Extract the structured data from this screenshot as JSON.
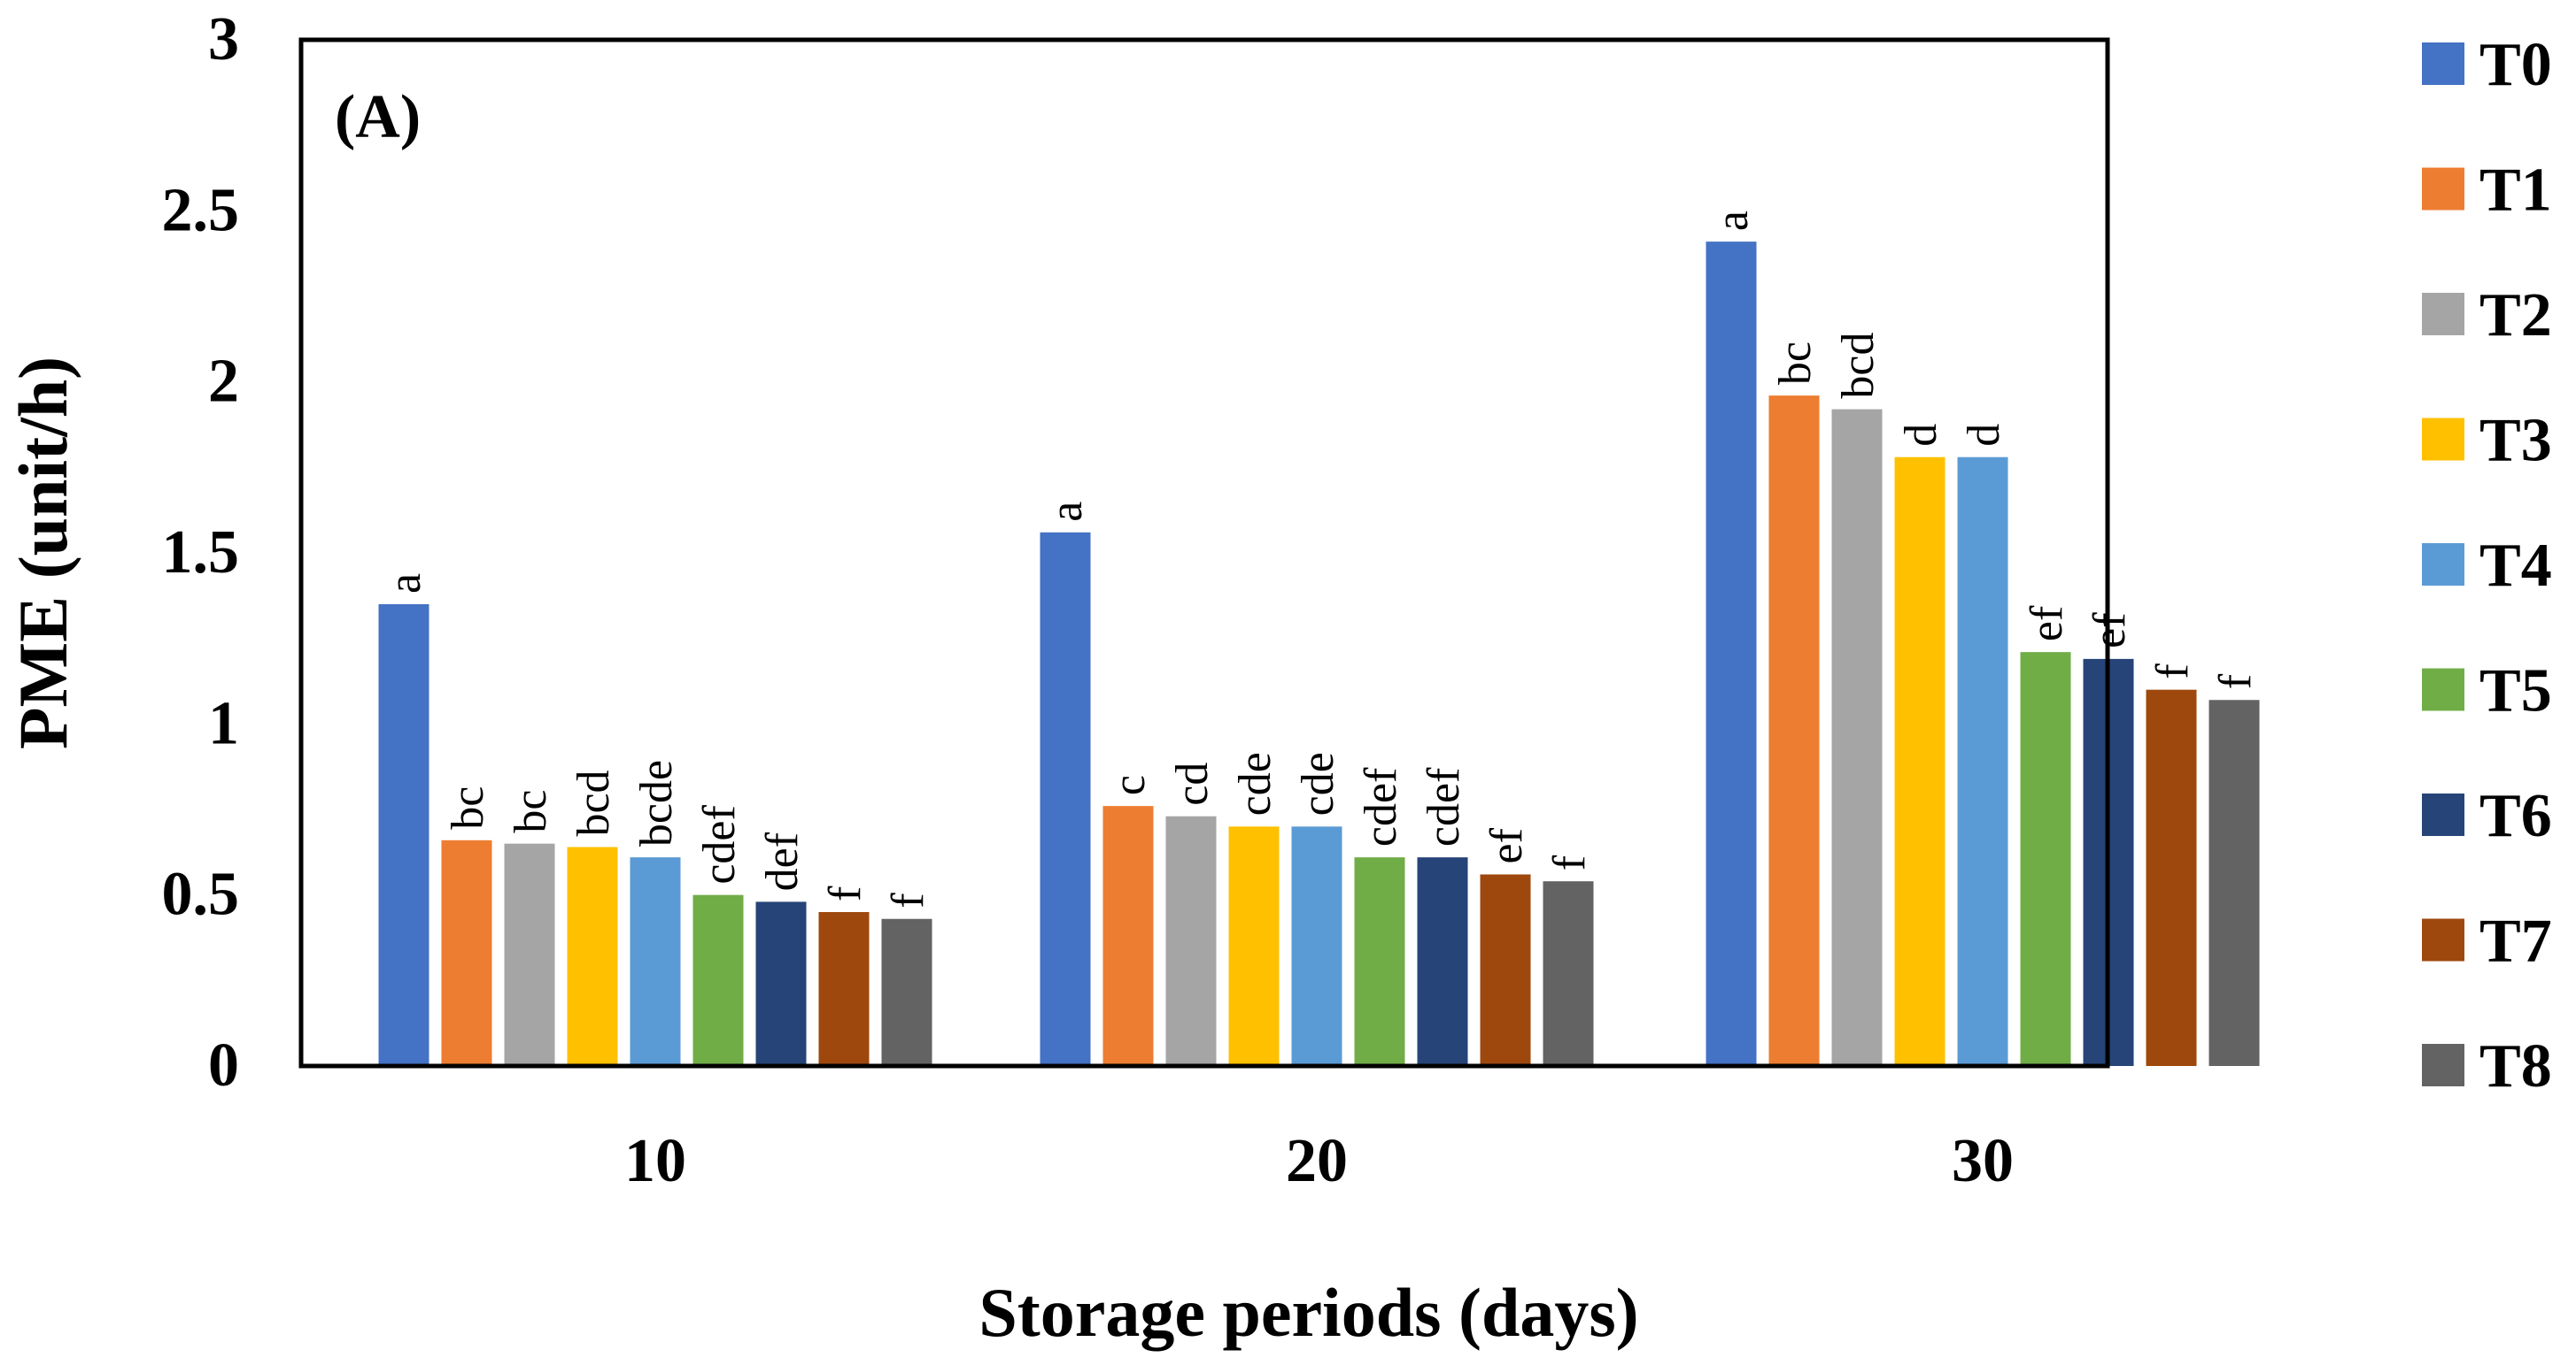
{
  "chart_data": {
    "type": "bar",
    "panel_label": "(A)",
    "xlabel": "Storage periods (days)",
    "ylabel": "PME (unit/h)",
    "ylim": [
      0,
      3
    ],
    "yticks": [
      0,
      0.5,
      1,
      1.5,
      2,
      2.5,
      3
    ],
    "ytick_labels": [
      "0",
      "0.5",
      "1",
      "1.5",
      "2",
      "2.5",
      "3"
    ],
    "categories": [
      "10",
      "20",
      "30"
    ],
    "legend_position": "right",
    "series": [
      {
        "name": "T0",
        "color": "#4472C4",
        "values": [
          1.35,
          1.56,
          2.41
        ],
        "letters": [
          "a",
          "a",
          "a"
        ]
      },
      {
        "name": "T1",
        "color": "#ED7D31",
        "values": [
          0.66,
          0.76,
          1.96
        ],
        "letters": [
          "bc",
          "c",
          "bc"
        ]
      },
      {
        "name": "T2",
        "color": "#A5A5A5",
        "values": [
          0.65,
          0.73,
          1.92
        ],
        "letters": [
          "bc",
          "cd",
          "bcd"
        ]
      },
      {
        "name": "T3",
        "color": "#FFC000",
        "values": [
          0.64,
          0.7,
          1.78
        ],
        "letters": [
          "bcd",
          "cde",
          "d"
        ]
      },
      {
        "name": "T4",
        "color": "#5B9BD5",
        "values": [
          0.61,
          0.7,
          1.78
        ],
        "letters": [
          "bcde",
          "cde",
          "d"
        ]
      },
      {
        "name": "T5",
        "color": "#70AD47",
        "values": [
          0.5,
          0.61,
          1.21
        ],
        "letters": [
          "cdef",
          "cdef",
          "ef"
        ]
      },
      {
        "name": "T6",
        "color": "#264478",
        "values": [
          0.48,
          0.61,
          1.19
        ],
        "letters": [
          "def",
          "cdef",
          "ef"
        ]
      },
      {
        "name": "T7",
        "color": "#9E480E",
        "values": [
          0.45,
          0.56,
          1.1
        ],
        "letters": [
          "f",
          "ef",
          "f"
        ]
      },
      {
        "name": "T8",
        "color": "#636363",
        "values": [
          0.43,
          0.54,
          1.07
        ],
        "letters": [
          "f",
          "f",
          "f"
        ]
      }
    ]
  }
}
